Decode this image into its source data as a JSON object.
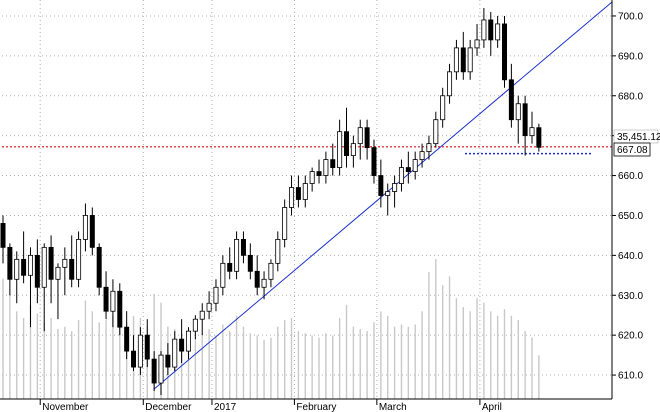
{
  "chart_data": {
    "type": "candlestick",
    "y_axis": {
      "side": "right",
      "range": [
        604,
        704
      ],
      "ticks": [
        "610.0",
        "620.0",
        "630.0",
        "640.0",
        "650.0",
        "660.0",
        "670.0",
        "680.0",
        "690.0",
        "700.0"
      ]
    },
    "x_axis": {
      "tick_labels": [
        "November",
        "December",
        "2017",
        "February",
        "March",
        "April"
      ]
    },
    "grid": true,
    "price_labels": {
      "volume_badge": "35,451.12",
      "last_price_badge": "667.08"
    },
    "reference_lines": [
      {
        "kind": "horizontal",
        "value": 667.2,
        "color": "#e01010",
        "style": "dotted"
      },
      {
        "kind": "horizontal",
        "value": 665.5,
        "color": "#1a30d0",
        "style": "dotted"
      }
    ],
    "trendline": {
      "from_value": 606.5,
      "to_value": 703.5,
      "color": "#1a30d0"
    },
    "volume_scale": [
      0,
      100
    ],
    "colors": {
      "up": "#ffffff",
      "down": "#000000",
      "wick": "#000000",
      "volume": "#c8c8c8",
      "trend": "#1a30d0"
    },
    "candles": [
      {
        "o": 648,
        "h": 650,
        "l": 638,
        "c": 642,
        "v": 55
      },
      {
        "o": 642,
        "h": 643,
        "l": 630,
        "c": 634,
        "v": 48
      },
      {
        "o": 634,
        "h": 641,
        "l": 628,
        "c": 639,
        "v": 40
      },
      {
        "o": 639,
        "h": 646,
        "l": 633,
        "c": 635,
        "v": 37
      },
      {
        "o": 635,
        "h": 642,
        "l": 622,
        "c": 640,
        "v": 43
      },
      {
        "o": 640,
        "h": 644,
        "l": 628,
        "c": 632,
        "v": 39
      },
      {
        "o": 632,
        "h": 643,
        "l": 621,
        "c": 642,
        "v": 35
      },
      {
        "o": 642,
        "h": 645,
        "l": 628,
        "c": 634,
        "v": 37
      },
      {
        "o": 634,
        "h": 638,
        "l": 624,
        "c": 637,
        "v": 32
      },
      {
        "o": 637,
        "h": 642,
        "l": 630,
        "c": 639,
        "v": 33
      },
      {
        "o": 639,
        "h": 645,
        "l": 632,
        "c": 634,
        "v": 31
      },
      {
        "o": 634,
        "h": 646,
        "l": 632,
        "c": 644,
        "v": 36
      },
      {
        "o": 644,
        "h": 653,
        "l": 641,
        "c": 650,
        "v": 45
      },
      {
        "o": 650,
        "h": 652,
        "l": 640,
        "c": 642,
        "v": 40
      },
      {
        "o": 642,
        "h": 643,
        "l": 630,
        "c": 632,
        "v": 35
      },
      {
        "o": 632,
        "h": 636,
        "l": 624,
        "c": 626,
        "v": 36
      },
      {
        "o": 626,
        "h": 634,
        "l": 622,
        "c": 631,
        "v": 38
      },
      {
        "o": 631,
        "h": 633,
        "l": 620,
        "c": 622,
        "v": 33
      },
      {
        "o": 622,
        "h": 626,
        "l": 614,
        "c": 616,
        "v": 35
      },
      {
        "o": 616,
        "h": 620,
        "l": 611,
        "c": 612,
        "v": 38
      },
      {
        "o": 612,
        "h": 622,
        "l": 610,
        "c": 620,
        "v": 37
      },
      {
        "o": 620,
        "h": 624,
        "l": 612,
        "c": 614,
        "v": 33
      },
      {
        "o": 614,
        "h": 616,
        "l": 606,
        "c": 608,
        "v": 48
      },
      {
        "o": 608,
        "h": 616,
        "l": 605,
        "c": 615,
        "v": 44
      },
      {
        "o": 615,
        "h": 618,
        "l": 610,
        "c": 612,
        "v": 33
      },
      {
        "o": 612,
        "h": 621,
        "l": 611,
        "c": 619,
        "v": 32
      },
      {
        "o": 619,
        "h": 624,
        "l": 613,
        "c": 616,
        "v": 30
      },
      {
        "o": 616,
        "h": 622,
        "l": 614,
        "c": 621,
        "v": 29
      },
      {
        "o": 621,
        "h": 625,
        "l": 619,
        "c": 624,
        "v": 28
      },
      {
        "o": 624,
        "h": 628,
        "l": 620,
        "c": 626,
        "v": 30
      },
      {
        "o": 626,
        "h": 631,
        "l": 624,
        "c": 628,
        "v": 32
      },
      {
        "o": 628,
        "h": 634,
        "l": 626,
        "c": 632,
        "v": 29
      },
      {
        "o": 632,
        "h": 640,
        "l": 630,
        "c": 638,
        "v": 34
      },
      {
        "o": 638,
        "h": 642,
        "l": 634,
        "c": 636,
        "v": 31
      },
      {
        "o": 636,
        "h": 646,
        "l": 634,
        "c": 644,
        "v": 38
      },
      {
        "o": 644,
        "h": 646,
        "l": 638,
        "c": 640,
        "v": 33
      },
      {
        "o": 640,
        "h": 643,
        "l": 634,
        "c": 636,
        "v": 30
      },
      {
        "o": 636,
        "h": 640,
        "l": 630,
        "c": 632,
        "v": 29
      },
      {
        "o": 632,
        "h": 636,
        "l": 629,
        "c": 634,
        "v": 27
      },
      {
        "o": 634,
        "h": 639,
        "l": 632,
        "c": 638,
        "v": 28
      },
      {
        "o": 638,
        "h": 646,
        "l": 636,
        "c": 644,
        "v": 33
      },
      {
        "o": 644,
        "h": 654,
        "l": 642,
        "c": 652,
        "v": 36
      },
      {
        "o": 652,
        "h": 660,
        "l": 650,
        "c": 657,
        "v": 37
      },
      {
        "o": 657,
        "h": 660,
        "l": 652,
        "c": 654,
        "v": 31
      },
      {
        "o": 654,
        "h": 660,
        "l": 652,
        "c": 658,
        "v": 30
      },
      {
        "o": 658,
        "h": 662,
        "l": 656,
        "c": 661,
        "v": 29
      },
      {
        "o": 661,
        "h": 664,
        "l": 658,
        "c": 660,
        "v": 28
      },
      {
        "o": 660,
        "h": 666,
        "l": 658,
        "c": 664,
        "v": 30
      },
      {
        "o": 664,
        "h": 668,
        "l": 660,
        "c": 662,
        "v": 29
      },
      {
        "o": 662,
        "h": 674,
        "l": 660,
        "c": 671,
        "v": 37
      },
      {
        "o": 671,
        "h": 677,
        "l": 662,
        "c": 665,
        "v": 43
      },
      {
        "o": 665,
        "h": 670,
        "l": 662,
        "c": 668,
        "v": 33
      },
      {
        "o": 668,
        "h": 674,
        "l": 664,
        "c": 672,
        "v": 32
      },
      {
        "o": 672,
        "h": 674,
        "l": 664,
        "c": 667,
        "v": 31
      },
      {
        "o": 667,
        "h": 669,
        "l": 658,
        "c": 660,
        "v": 35
      },
      {
        "o": 660,
        "h": 664,
        "l": 652,
        "c": 655,
        "v": 40
      },
      {
        "o": 655,
        "h": 658,
        "l": 650,
        "c": 656,
        "v": 38
      },
      {
        "o": 656,
        "h": 660,
        "l": 652,
        "c": 658,
        "v": 33
      },
      {
        "o": 658,
        "h": 664,
        "l": 656,
        "c": 662,
        "v": 34
      },
      {
        "o": 662,
        "h": 666,
        "l": 658,
        "c": 661,
        "v": 33
      },
      {
        "o": 661,
        "h": 666,
        "l": 659,
        "c": 664,
        "v": 34
      },
      {
        "o": 664,
        "h": 668,
        "l": 662,
        "c": 666,
        "v": 40
      },
      {
        "o": 666,
        "h": 670,
        "l": 664,
        "c": 668,
        "v": 58
      },
      {
        "o": 668,
        "h": 676,
        "l": 667,
        "c": 674,
        "v": 64
      },
      {
        "o": 674,
        "h": 682,
        "l": 672,
        "c": 680,
        "v": 52
      },
      {
        "o": 680,
        "h": 688,
        "l": 678,
        "c": 686,
        "v": 56
      },
      {
        "o": 686,
        "h": 694,
        "l": 684,
        "c": 692,
        "v": 46
      },
      {
        "o": 692,
        "h": 696,
        "l": 684,
        "c": 686,
        "v": 42
      },
      {
        "o": 686,
        "h": 694,
        "l": 684,
        "c": 692,
        "v": 40
      },
      {
        "o": 692,
        "h": 698,
        "l": 690,
        "c": 694,
        "v": 46
      },
      {
        "o": 694,
        "h": 702,
        "l": 692,
        "c": 699,
        "v": 44
      },
      {
        "o": 699,
        "h": 701,
        "l": 690,
        "c": 694,
        "v": 40
      },
      {
        "o": 694,
        "h": 700,
        "l": 692,
        "c": 698,
        "v": 38
      },
      {
        "o": 698,
        "h": 700,
        "l": 682,
        "c": 684,
        "v": 41
      },
      {
        "o": 684,
        "h": 688,
        "l": 672,
        "c": 674,
        "v": 38
      },
      {
        "o": 674,
        "h": 680,
        "l": 668,
        "c": 678,
        "v": 36
      },
      {
        "o": 678,
        "h": 680,
        "l": 665,
        "c": 670,
        "v": 31
      },
      {
        "o": 670,
        "h": 676,
        "l": 668,
        "c": 672,
        "v": 28
      },
      {
        "o": 672,
        "h": 673,
        "l": 666,
        "c": 667.08,
        "v": 20
      }
    ]
  }
}
